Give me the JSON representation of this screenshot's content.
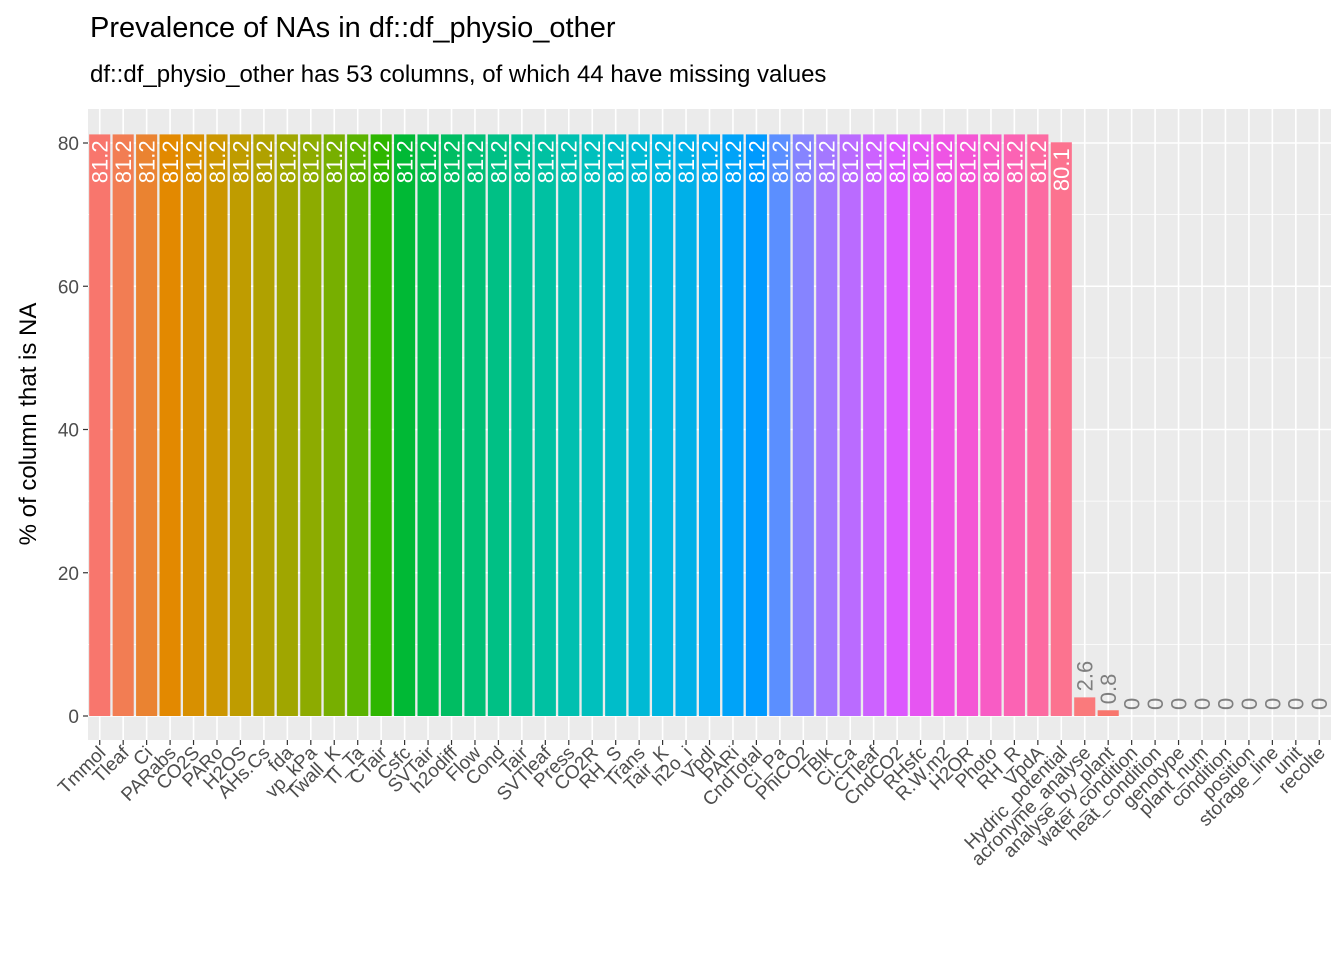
{
  "chart_data": {
    "type": "bar",
    "title": "Prevalence of NAs in df::df_physio_other",
    "subtitle": "df::df_physio_other has 53 columns, of which 44 have missing values",
    "xlabel": "",
    "ylabel": "% of column that is NA",
    "ylim": [
      -3,
      81.5
    ],
    "y_ticks": [
      0,
      20,
      40,
      60,
      80
    ],
    "grid": true,
    "legend": "none",
    "panel_background": "#EBEBEB",
    "label_color_inside": "#FFFFFF",
    "label_color_outside": "#7F7F7F",
    "categories": [
      "Tmmol",
      "Tleaf",
      "Ci",
      "PARabs",
      "CO2S",
      "PARo",
      "H2OS",
      "AHs.Cs",
      "fda",
      "vp_kPa",
      "Twall_K",
      "Tl_Ta",
      "CTair",
      "Csfc",
      "SVTair",
      "h2odiff",
      "Flow",
      "Cond",
      "Tair",
      "SVTleaf",
      "Press",
      "CO2R",
      "RH_S",
      "Trans",
      "Tair_K",
      "h2o_i",
      "Vpdl",
      "PARi",
      "CndTotal",
      "Ci_Pa",
      "PhiCO2",
      "TBlk",
      "Ci.Ca",
      "CTleaf",
      "CndCO2",
      "RHsfc",
      "R.W.m2",
      "H2OR",
      "Photo",
      "RH_R",
      "VpdA",
      "Hydric_potential",
      "acronyme_analyse",
      "analyse_by_plant",
      "water_condition",
      "heat_condition",
      "genotype",
      "plant_num",
      "condition",
      "position",
      "storage_line",
      "unit",
      "recolte"
    ],
    "values": [
      81.2,
      81.2,
      81.2,
      81.2,
      81.2,
      81.2,
      81.2,
      81.2,
      81.2,
      81.2,
      81.2,
      81.2,
      81.2,
      81.2,
      81.2,
      81.2,
      81.2,
      81.2,
      81.2,
      81.2,
      81.2,
      81.2,
      81.2,
      81.2,
      81.2,
      81.2,
      81.2,
      81.2,
      81.2,
      81.2,
      81.2,
      81.2,
      81.2,
      81.2,
      81.2,
      81.2,
      81.2,
      81.2,
      81.2,
      81.2,
      81.2,
      80.1,
      2.6,
      0.8,
      0,
      0,
      0,
      0,
      0,
      0,
      0,
      0,
      0
    ],
    "value_labels": [
      "81.2",
      "81.2",
      "81.2",
      "81.2",
      "81.2",
      "81.2",
      "81.2",
      "81.2",
      "81.2",
      "81.2",
      "81.2",
      "81.2",
      "81.2",
      "81.2",
      "81.2",
      "81.2",
      "81.2",
      "81.2",
      "81.2",
      "81.2",
      "81.2",
      "81.2",
      "81.2",
      "81.2",
      "81.2",
      "81.2",
      "81.2",
      "81.2",
      "81.2",
      "81.2",
      "81.2",
      "81.2",
      "81.2",
      "81.2",
      "81.2",
      "81.2",
      "81.2",
      "81.2",
      "81.2",
      "81.2",
      "81.2",
      "80.1",
      "2.6",
      "0.8",
      "0",
      "0",
      "0",
      "0",
      "0",
      "0",
      "0",
      "0",
      "0"
    ],
    "colors": [
      "#F8766D",
      "#F27D53",
      "#EA8331",
      "#E38900",
      "#D89000",
      "#CC9600",
      "#BF9C00",
      "#B0A100",
      "#A0A600",
      "#8DAB00",
      "#77AF00",
      "#5BB300",
      "#2EB600",
      "#00B935",
      "#00BB4E",
      "#00BD62",
      "#00BF74",
      "#00C085",
      "#00C094",
      "#00C1A2",
      "#00C0B0",
      "#00C0BD",
      "#00BDC9",
      "#00BAD4",
      "#00B6DF",
      "#00B0E8",
      "#00AAF1",
      "#00A3F8",
      "#009AFE",
      "#5B8FFF",
      "#8684FF",
      "#A478FF",
      "#BA6BFF",
      "#CC62FF",
      "#DC58FE",
      "#E655F2",
      "#EE54E4",
      "#F456D5",
      "#F85CC5",
      "#FB63B4",
      "#FC6BA2",
      "#FC738F",
      "#FA7A7C"
    ]
  }
}
